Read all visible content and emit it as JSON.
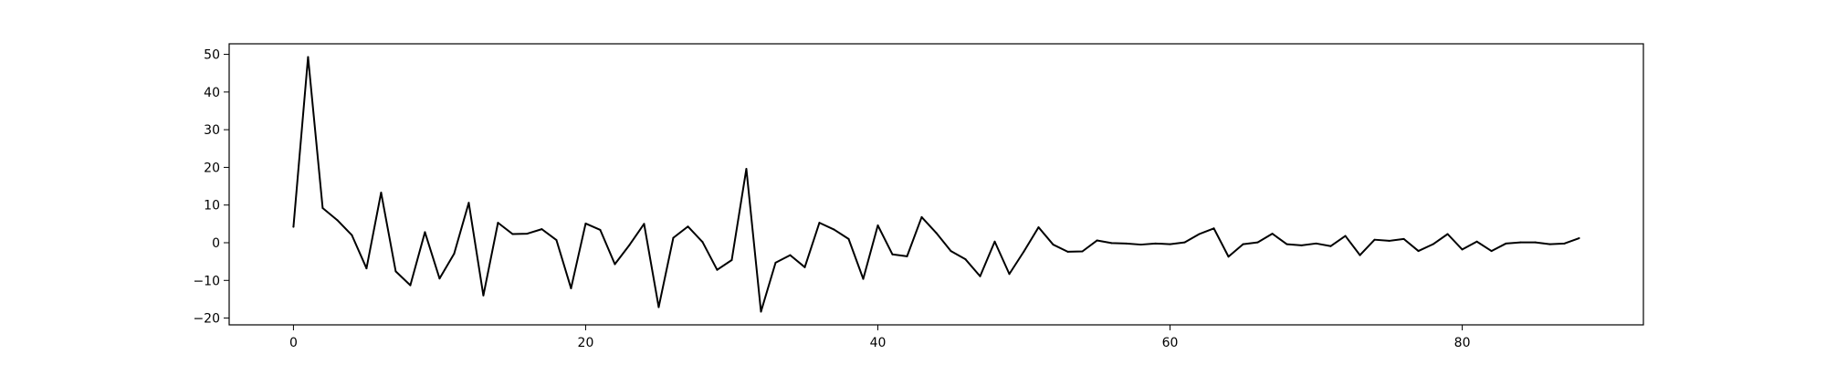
{
  "chart_data": {
    "type": "line",
    "title": "",
    "xlabel": "",
    "ylabel": "",
    "xlim": [
      -4.4,
      92.4
    ],
    "ylim": [
      -21.8,
      52.8
    ],
    "x_ticks": [
      0,
      20,
      40,
      60,
      80
    ],
    "y_ticks": [
      -20,
      -10,
      0,
      10,
      20,
      30,
      40,
      50
    ],
    "grid": false,
    "legend": "none",
    "line_color": "#000000",
    "series": [
      {
        "x": [
          0,
          1,
          2,
          3,
          4,
          5,
          6,
          7,
          8,
          9,
          10,
          11,
          12,
          13,
          14,
          15,
          16,
          17,
          18,
          19,
          20,
          21,
          22,
          23,
          24,
          25,
          26,
          27,
          28,
          29,
          30,
          31,
          32,
          33,
          34,
          35,
          36,
          37,
          38,
          39,
          40,
          41,
          42,
          43,
          44,
          45,
          46,
          47,
          48,
          49,
          50,
          51,
          52,
          53,
          54,
          55,
          56,
          57,
          58,
          59,
          60,
          61,
          62,
          63,
          64,
          65,
          66,
          67,
          68,
          69,
          70,
          71,
          72,
          73,
          74,
          75,
          76,
          77,
          78,
          79,
          80,
          81,
          82,
          83,
          84,
          85,
          86,
          87,
          88
        ],
        "values": [
          4.2,
          49.3,
          9.2,
          6.0,
          2.0,
          -6.8,
          13.3,
          -7.6,
          -11.3,
          2.8,
          -9.5,
          -2.9,
          10.6,
          -14.0,
          5.3,
          2.3,
          2.4,
          3.6,
          0.7,
          -12.1,
          5.1,
          3.4,
          -5.7,
          -0.6,
          5.0,
          -17.1,
          1.3,
          4.3,
          0.2,
          -7.2,
          -4.6,
          19.6,
          -18.3,
          -5.3,
          -3.3,
          -6.5,
          5.3,
          3.5,
          1.0,
          -9.6,
          4.6,
          -3.1,
          -3.6,
          6.8,
          2.6,
          -2.2,
          -4.4,
          -8.9,
          0.3,
          -8.3,
          -2.3,
          4.1,
          -0.5,
          -2.4,
          -2.3,
          0.6,
          -0.1,
          -0.2,
          -0.5,
          -0.2,
          -0.4,
          0.1,
          2.3,
          3.8,
          -3.7,
          -0.4,
          0.1,
          2.4,
          -0.4,
          -0.7,
          -0.2,
          -0.9,
          1.8,
          -3.3,
          0.8,
          0.5,
          1.0,
          -2.2,
          -0.4,
          2.3,
          -1.8,
          0.3,
          -2.2,
          -0.2,
          0.1,
          0.1,
          -0.4,
          -0.2,
          1.2
        ]
      }
    ]
  }
}
